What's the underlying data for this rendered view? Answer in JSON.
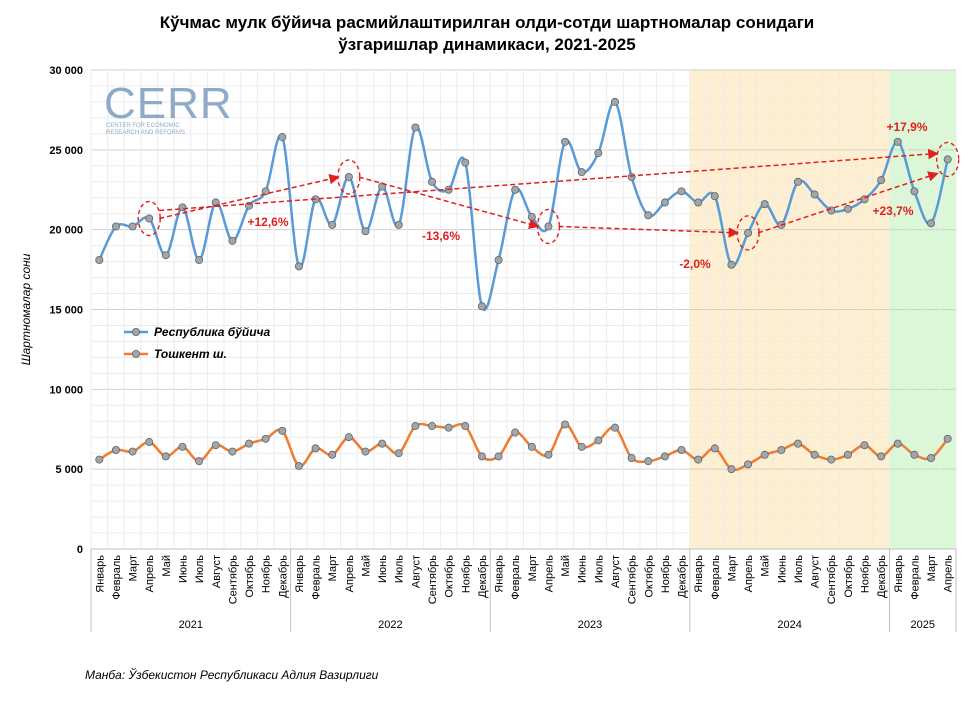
{
  "title_line1": "Кўчмас мулк бўйича расмийлаштирилган олди-сотди шартномалар сонидаги",
  "title_line2": "ўзгаришлар динамикаси, 2021-2025",
  "source": "Манба: Ўзбекистон Республикаси Адлия Вазирлиги",
  "logo": {
    "text": "CERR",
    "subtitle_line1": "CENTER FOR ECONOMIC",
    "subtitle_line2": "RESEARCH AND REFORMS"
  },
  "chart_data": {
    "type": "line",
    "ylabel": "Шартномалар сони",
    "ylim": [
      0,
      30000
    ],
    "yticks": [
      0,
      5000,
      10000,
      15000,
      20000,
      25000,
      30000
    ],
    "ytick_labels": [
      "0",
      "5 000",
      "10 000",
      "15 000",
      "20 000",
      "25 000",
      "30 000"
    ],
    "grid": true,
    "legend_position": "left-middle",
    "months": [
      "Январь",
      "Февраль",
      "Март",
      "Апрель",
      "Май",
      "Июнь",
      "Июль",
      "Август",
      "Сентябрь",
      "Октябрь",
      "Ноябрь",
      "Декабрь"
    ],
    "years": [
      {
        "label": "2021",
        "months": 12
      },
      {
        "label": "2022",
        "months": 12
      },
      {
        "label": "2023",
        "months": 12
      },
      {
        "label": "2024",
        "months": 12
      },
      {
        "label": "2025",
        "months": 4
      }
    ],
    "series": [
      {
        "name": "Республика бўйича",
        "color": "#5b9bd5",
        "marker_fill": "#a5a5a5",
        "values": [
          18100,
          20200,
          20200,
          20700,
          18400,
          21400,
          18100,
          21700,
          19300,
          21500,
          22400,
          25800,
          17700,
          21900,
          20300,
          23300,
          19900,
          22700,
          20300,
          26400,
          23000,
          22500,
          24200,
          15200,
          18100,
          22500,
          20800,
          20200,
          25500,
          23600,
          24800,
          28000,
          23300,
          20900,
          21700,
          22400,
          21700,
          22100,
          17800,
          19800,
          21600,
          20300,
          23000,
          22200,
          21200,
          21300,
          21900,
          23100,
          25500,
          22400,
          20400,
          24400
        ]
      },
      {
        "name": "Тошкент ш.",
        "color": "#ed7d31",
        "marker_fill": "#a5a5a5",
        "values": [
          5600,
          6200,
          6100,
          6700,
          5800,
          6400,
          5500,
          6500,
          6100,
          6600,
          6900,
          7400,
          5200,
          6300,
          5900,
          7000,
          6100,
          6600,
          6000,
          7700,
          7700,
          7600,
          7700,
          5800,
          5800,
          7300,
          6400,
          5900,
          7800,
          6400,
          6800,
          7600,
          5700,
          5500,
          5800,
          6200,
          5600,
          6300,
          5000,
          5300,
          5900,
          6200,
          6600,
          5900,
          5600,
          5900,
          6500,
          5800,
          6600,
          5900,
          5700,
          6900
        ]
      }
    ],
    "highlight_bands": [
      {
        "from_index": 36,
        "to_index": 47,
        "color": "#fdefcf"
      },
      {
        "from_index": 48,
        "to_index": 51,
        "color": "#daf8d5"
      }
    ],
    "annotations": [
      {
        "text": "+12,6%",
        "from_index": 3,
        "to_index": 15
      },
      {
        "text": "-13,6%",
        "from_index": 15,
        "to_index": 27
      },
      {
        "text": "-2,0%",
        "from_index": 27,
        "to_index": 39
      },
      {
        "text": "+23,7%",
        "from_index": 39,
        "to_index": 51
      },
      {
        "text": "+17,9%",
        "from_index": 3,
        "to_index": 51
      }
    ],
    "circled_indices": [
      3,
      15,
      27,
      39,
      51
    ],
    "annotation_color": "#e01f1f"
  }
}
